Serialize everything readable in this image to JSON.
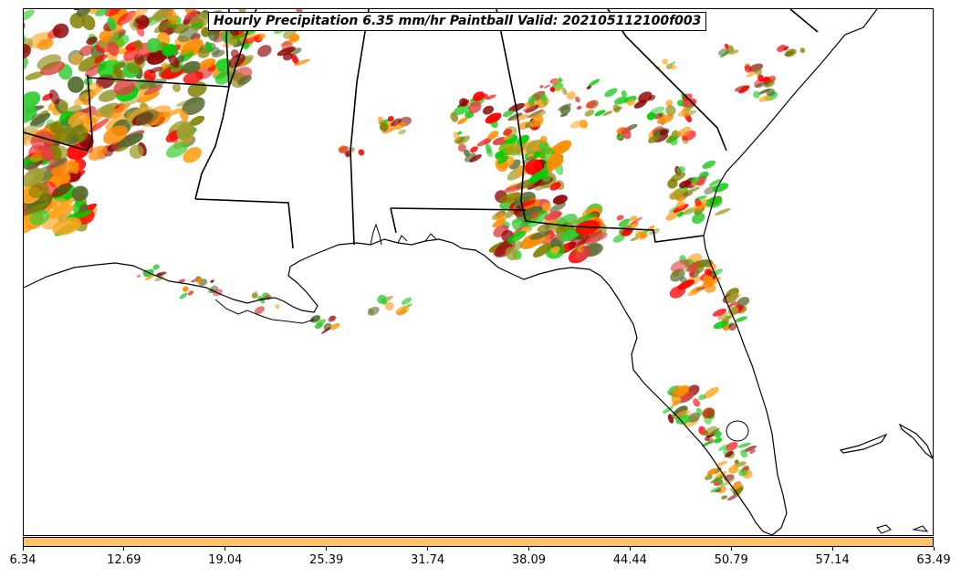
{
  "title": "Hourly Precipitation 6.35 mm/hr Paintball Valid: 202105112100f003",
  "colorbar": {
    "color": "#ffc266",
    "tick_labels": [
      "6.34",
      "12.69",
      "19.04",
      "25.39",
      "31.74",
      "38.09",
      "44.44",
      "50.79",
      "57.14",
      "63.49"
    ]
  },
  "member_colors": [
    "#ff8c00",
    "#ffa31a",
    "#ff0000",
    "#e04040",
    "#00cc00",
    "#33cc33",
    "#8b0000",
    "#808000",
    "#556b2f",
    "#a0a030"
  ],
  "regions": [
    "Louisiana",
    "Mississippi",
    "Alabama",
    "Georgia",
    "Florida",
    "Gulf of Mexico"
  ]
}
